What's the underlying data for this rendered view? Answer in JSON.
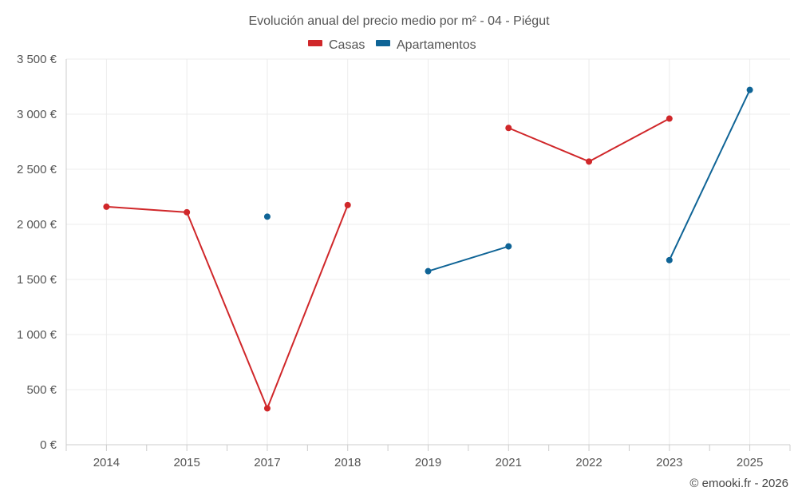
{
  "chart_data": {
    "type": "line",
    "title": "Evolución anual del precio medio por m² - 04 - Piégut",
    "categories": [
      "2014",
      "2015",
      "2017",
      "2018",
      "2019",
      "2021",
      "2022",
      "2023",
      "2025"
    ],
    "series": [
      {
        "name": "Casas",
        "color": "#d0272a",
        "values": [
          2160,
          2110,
          330,
          2175,
          null,
          2875,
          2570,
          2960,
          null
        ]
      },
      {
        "name": "Apartamentos",
        "color": "#0f6496",
        "values": [
          null,
          null,
          2070,
          null,
          1575,
          1800,
          null,
          1675,
          3220
        ]
      }
    ],
    "y_tick_labels": [
      "0 €",
      "500 €",
      "1 000 €",
      "1 500 €",
      "2 000 €",
      "2 500 €",
      "3 000 €",
      "3 500 €"
    ],
    "ylim": [
      0,
      3500
    ],
    "y_tick_step": 500,
    "grid": true,
    "legend_position": "top-center",
    "xlabel": "",
    "ylabel": ""
  },
  "credit": "© emooki.fr - 2026"
}
